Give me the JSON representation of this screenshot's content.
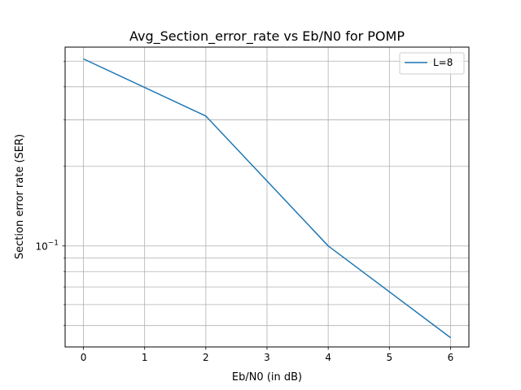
{
  "chart_data": {
    "type": "line",
    "title": "Avg_Section_error_rate vs Eb/N0 for POMP",
    "xlabel": "Eb/N0 (in dB)",
    "ylabel": "Section error rate (SER)",
    "x": [
      0,
      2,
      4,
      6
    ],
    "series": [
      {
        "name": "L=8",
        "color": "#1f77b4",
        "values": [
          0.51,
          0.31,
          0.1,
          0.045
        ]
      }
    ],
    "xlim": [
      -0.3,
      6.3
    ],
    "ylim": [
      0.0415,
      0.565
    ],
    "yscale": "log",
    "xticks": [
      0,
      1,
      2,
      3,
      4,
      5,
      6
    ],
    "xtick_labels": [
      "0",
      "1",
      "2",
      "3",
      "4",
      "5",
      "6"
    ],
    "yticks_major": [
      0.1
    ],
    "ytick_labels": [
      "10",
      "−1"
    ],
    "yticks_minor": [
      0.05,
      0.06,
      0.07,
      0.08,
      0.09,
      0.2,
      0.3,
      0.4,
      0.5
    ],
    "grid": true,
    "legend_placement": "top-right"
  }
}
